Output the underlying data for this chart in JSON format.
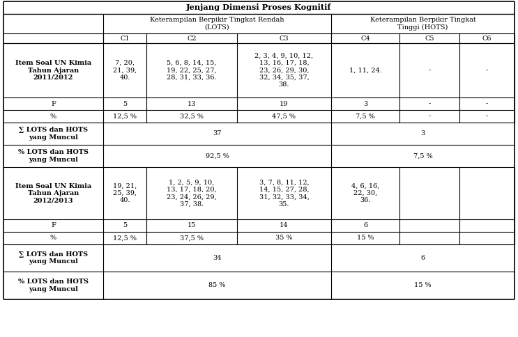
{
  "title": "Jenjang Dimenssi Proses Kognitif",
  "title_text": "Jenjang Dimensi Proses Kognitif",
  "col_header_lots": "Keterampilan Berpikir Tingkat Rendah\n(LOTS)",
  "col_header_hots": "Keterampilan Berpikir Tingkat\nTinggi (HOTS)",
  "col_labels": [
    "C1",
    "C2",
    "C3",
    "C4",
    "C5",
    "C6"
  ],
  "rows": [
    {
      "label": "Item Soal UN Kimia\nTahun Ajaran\n2011/2012",
      "label_bold": true,
      "c1": "7, 20,\n21, 39,\n40.",
      "c2": "5, 6, 8, 14, 15,\n19, 22, 25, 27,\n28, 31, 33, 36.",
      "c3": "2, 3, 4, 9, 10, 12,\n13, 16, 17, 18,\n23, 26, 29, 30,\n32, 34, 35, 37,\n38.",
      "c4": "1, 11, 24.",
      "c5": "-",
      "c6": "-"
    },
    {
      "label": "F",
      "label_bold": false,
      "c1": "5",
      "c2": "13",
      "c3": "19",
      "c4": "3",
      "c5": "-",
      "c6": "-"
    },
    {
      "label": "%",
      "label_bold": false,
      "c1": "12,5 %",
      "c2": "32,5 %",
      "c3": "47,5 %",
      "c4": "7,5 %",
      "c5": "-",
      "c6": "-"
    },
    {
      "label": "∑ LOTS dan HOTS\nyang Muncul",
      "label_bold": true,
      "lots_val": "37",
      "hots_val": "3",
      "is_merged": true
    },
    {
      "label": "% LOTS dan HOTS\nyang Muncul",
      "label_bold": true,
      "lots_val": "92,5 %",
      "hots_val": "7,5 %",
      "is_merged": true
    },
    {
      "label": "Item Soal UN Kimia\nTahun Ajaran\n2012/2013",
      "label_bold": true,
      "c1": "19, 21,\n25, 39,\n40.",
      "c2": "1, 2, 5, 9, 10,\n13, 17, 18, 20,\n23, 24, 26, 29,\n37, 38.",
      "c3": "3, 7, 8, 11, 12,\n14, 15, 27, 28,\n31, 32, 33, 34,\n35.",
      "c4": "4, 6, 16,\n22, 30,\n36.",
      "c5": "",
      "c6": ""
    },
    {
      "label": "F",
      "label_bold": false,
      "c1": "5",
      "c2": "15",
      "c3": "14",
      "c4": "6",
      "c5": "",
      "c6": ""
    },
    {
      "label": "%",
      "label_bold": false,
      "c1": "12,5 %",
      "c2": "37,5 %",
      "c3": "35 %",
      "c4": "15 %",
      "c5": "",
      "c6": ""
    },
    {
      "label": "∑ LOTS dan HOTS\nyang Muncul",
      "label_bold": true,
      "lots_val": "34",
      "hots_val": "6",
      "is_merged": true
    },
    {
      "label": "% LOTS dan HOTS\nyang Muncul",
      "label_bold": true,
      "lots_val": "85 %",
      "hots_val": "15 %",
      "is_merged": true
    }
  ],
  "background_color": "#ffffff",
  "text_color": "#000000",
  "font_family": "DejaVu Serif",
  "base_font": 7.0
}
